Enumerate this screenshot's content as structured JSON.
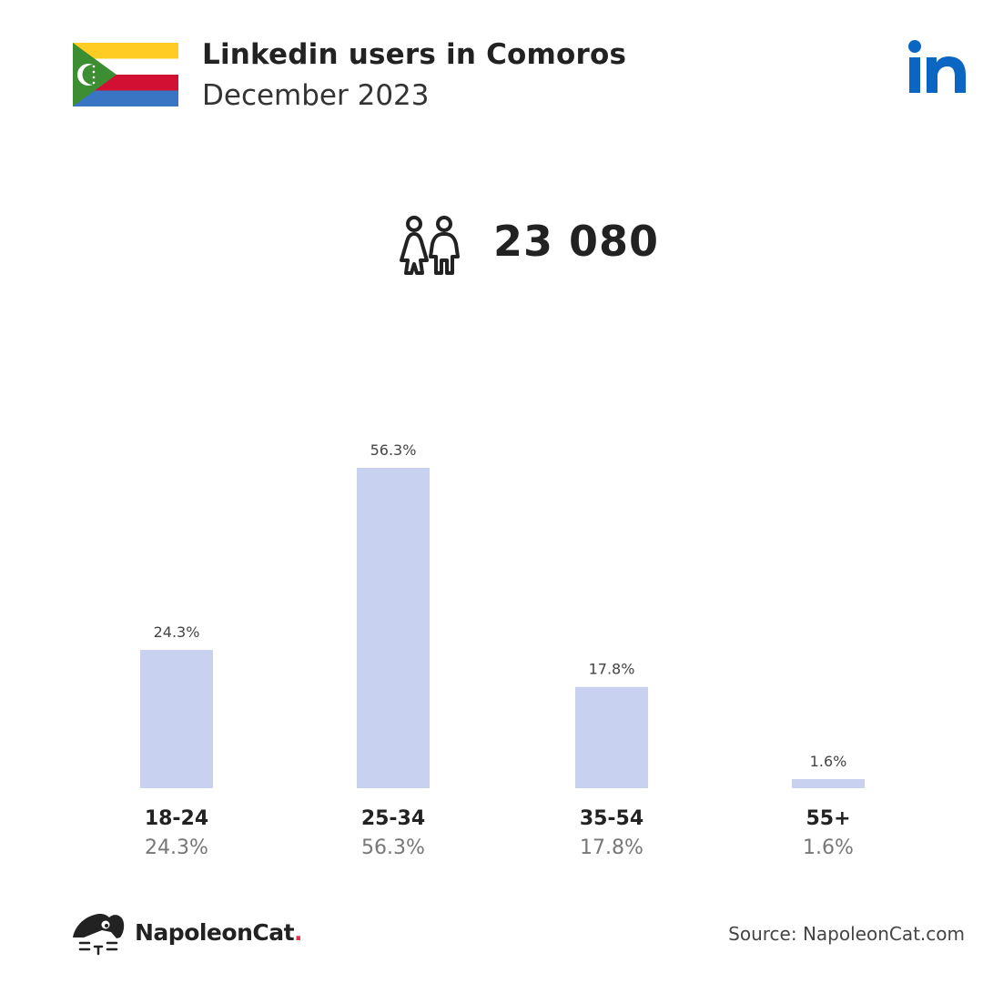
{
  "header": {
    "title": "Linkedin users in Comoros",
    "subtitle": "December 2023"
  },
  "flag": {
    "icon": "comoros-flag-icon",
    "colors": {
      "yellow": "#FFCC24",
      "white": "#FFFFFF",
      "red": "#D21034",
      "blue": "#3A75C4",
      "green": "#3D8E33"
    }
  },
  "brand": {
    "icon": "linkedin-logo-icon",
    "color": "#0A66C2"
  },
  "summary": {
    "icon": "users-icon",
    "total": "23 080"
  },
  "chart_data": {
    "type": "bar",
    "categories": [
      "18-24",
      "25-34",
      "35-54",
      "55+"
    ],
    "values": [
      24.3,
      56.3,
      17.8,
      1.6
    ],
    "value_labels": [
      "24.3%",
      "56.3%",
      "17.8%",
      "1.6%"
    ],
    "bar_color": "#C9D1F0",
    "unit": "%",
    "grid": false,
    "legend": "none",
    "ylim": [
      0,
      56.3
    ]
  },
  "footer": {
    "logo_icon": "napoleoncat-logo-icon",
    "logo_text": "NapoleonCat",
    "logo_dot": ".",
    "source": "Source: NapoleonCat.com"
  }
}
